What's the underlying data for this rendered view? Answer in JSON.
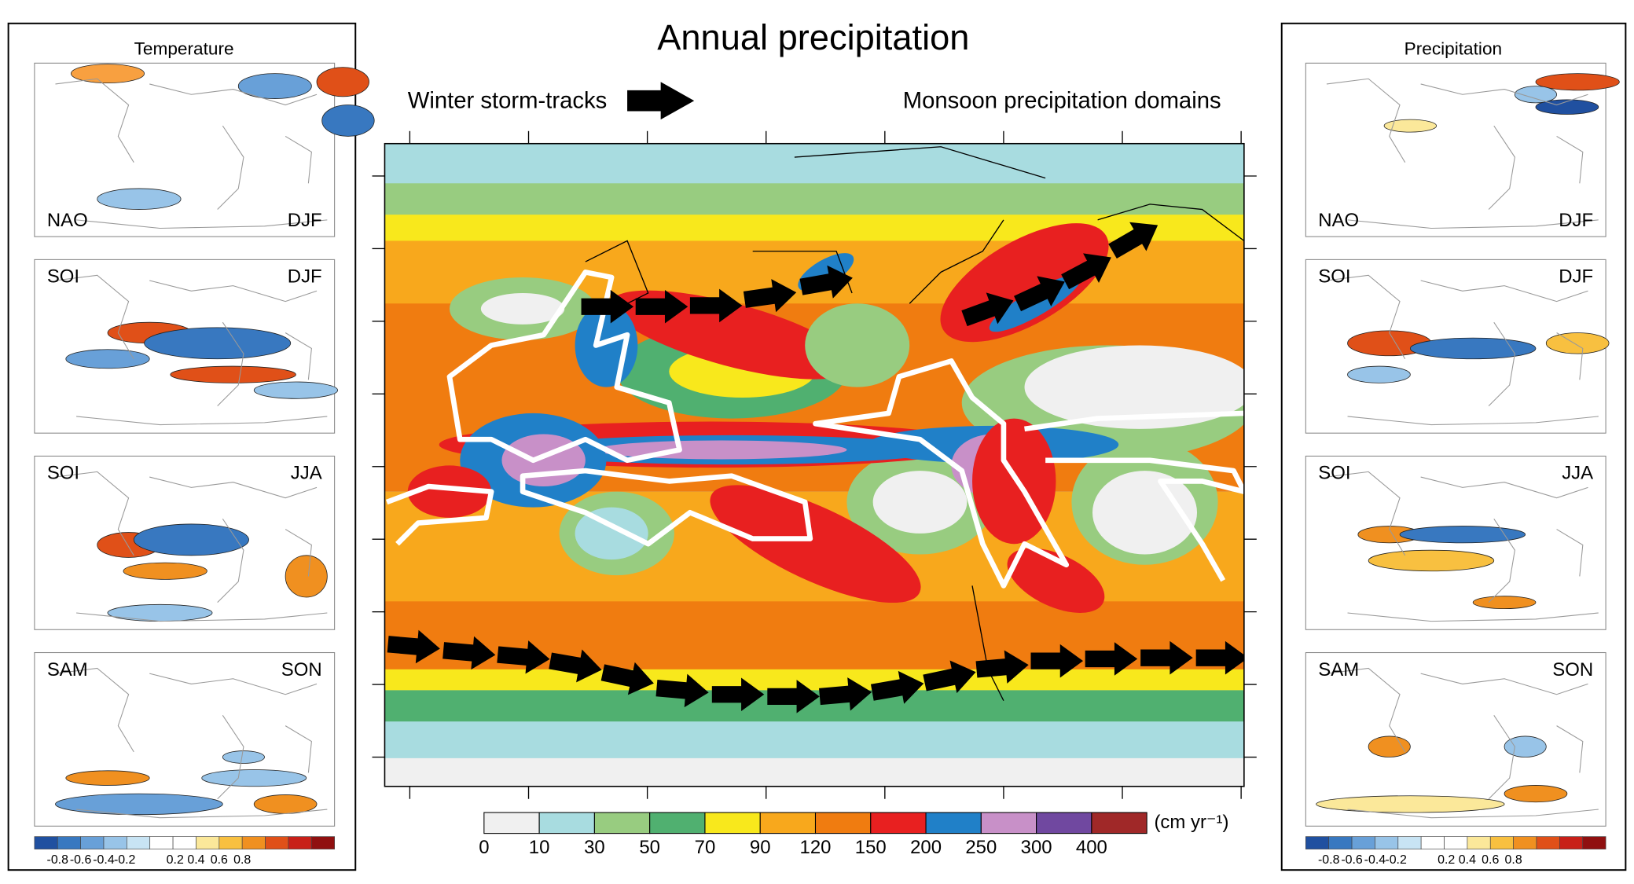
{
  "title": "Annual precipitation",
  "storm_tracks_label": "Winter storm-tracks",
  "monsoon_label": "Monsoon precipitation domains",
  "colorbar": {
    "labels": [
      "0",
      "10",
      "30",
      "50",
      "70",
      "90",
      "120",
      "150",
      "200",
      "250",
      "300",
      "400"
    ],
    "unit": "(cm yr⁻¹)"
  },
  "left_panel": {
    "title": "Temperature",
    "maps": [
      {
        "index": "NAO",
        "season": "DJF"
      },
      {
        "index": "SOI",
        "season": "DJF"
      },
      {
        "index": "SOI",
        "season": "JJA"
      },
      {
        "index": "SAM",
        "season": "SON"
      }
    ],
    "scale_labels": [
      "-0.8",
      "-0.6",
      "-0.4",
      "-0.2",
      "0.2",
      "0.4",
      "0.6",
      "0.8"
    ]
  },
  "right_panel": {
    "title": "Precipitation",
    "maps": [
      {
        "index": "NAO",
        "season": "DJF"
      },
      {
        "index": "SOI",
        "season": "DJF"
      },
      {
        "index": "SOI",
        "season": "JJA"
      },
      {
        "index": "SAM",
        "season": "SON"
      }
    ],
    "scale_labels": [
      "-0.8",
      "-0.6",
      "-0.4",
      "-0.2",
      "0.2",
      "0.4",
      "0.6",
      "0.8"
    ]
  }
}
